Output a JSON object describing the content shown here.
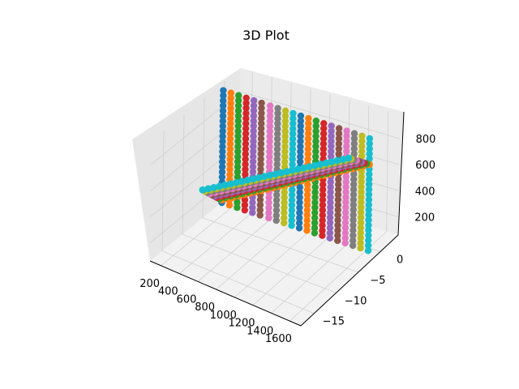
{
  "chart_data": {
    "type": "scatter",
    "projection": "3d",
    "title": "3D Plot",
    "xlabel": "",
    "ylabel": "",
    "zlabel": "",
    "grid": true,
    "legend": "none",
    "xlim": [
      80,
      1720
    ],
    "ylim": [
      -18,
      4
    ],
    "zlim": [
      60,
      980
    ],
    "x_ticks": [
      "200",
      "400",
      "600",
      "800",
      "1000",
      "1200",
      "1400",
      "1600"
    ],
    "y_ticks": [
      "0",
      "−5",
      "−10",
      "−15"
    ],
    "z_ticks": [
      "200",
      "400",
      "600",
      "800"
    ],
    "series_colors": [
      "#1f77b4",
      "#ff7f0e",
      "#2ca02c",
      "#d62728",
      "#9467bd",
      "#8c564b",
      "#e377c2",
      "#7f7f7f",
      "#bcbd22",
      "#17becf"
    ],
    "vertical_columns": {
      "description_values": "each column: x position, y position, z from low to high",
      "x": [
        130,
        210,
        290,
        370,
        450,
        530,
        620,
        700,
        780,
        860,
        940,
        1020,
        1100,
        1180,
        1260,
        1340,
        1420,
        1500,
        1580,
        1660
      ],
      "y": -1.5,
      "z_low": 100,
      "z_high": 960
    },
    "diagonal_band": {
      "z_start": 120,
      "z_end": 760,
      "x_start": 130,
      "x_end": 1660
    }
  }
}
